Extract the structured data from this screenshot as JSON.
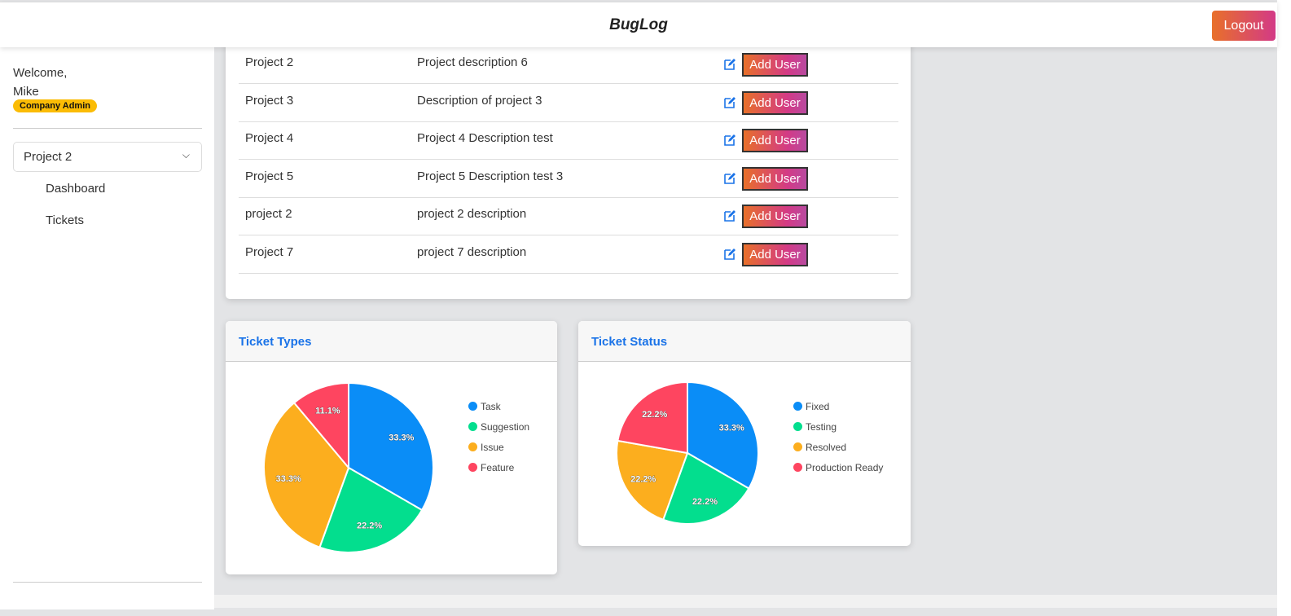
{
  "header": {
    "title": "BugLog",
    "logout": "Logout"
  },
  "sidebar": {
    "welcome": "Welcome,",
    "user": "Mike",
    "role": "Company Admin",
    "project_select": "Project 2",
    "items": [
      {
        "label": "Dashboard"
      },
      {
        "label": "Tickets"
      }
    ]
  },
  "projects": [
    {
      "name": "Project 2",
      "description": "Project description 6",
      "action": "Add User"
    },
    {
      "name": "Project 3",
      "description": "Description of project 3",
      "action": "Add User"
    },
    {
      "name": "Project 4",
      "description": "Project 4 Description test",
      "action": "Add User"
    },
    {
      "name": "Project 5",
      "description": "Project 5 Description test 3",
      "action": "Add User"
    },
    {
      "name": "project 2",
      "description": "project 2 description",
      "action": "Add User"
    },
    {
      "name": "Project 7",
      "description": "project 7 description",
      "action": "Add User"
    }
  ],
  "chart_data": [
    {
      "type": "pie",
      "title": "Ticket Types",
      "categories": [
        "Task",
        "Suggestion",
        "Issue",
        "Feature"
      ],
      "values": [
        3,
        2,
        3,
        1
      ],
      "labels": [
        "33.3%",
        "22.2%",
        "33.3%",
        "11.1%"
      ],
      "colors": [
        "#0a8df7",
        "#03de8e",
        "#fcae1e",
        "#fe4560"
      ],
      "legend": "right"
    },
    {
      "type": "pie",
      "title": "Ticket Status",
      "categories": [
        "Fixed",
        "Testing",
        "Resolved",
        "Production Ready"
      ],
      "values": [
        3,
        2,
        2,
        2
      ],
      "labels": [
        "33.3%",
        "22.2%",
        "22.2%",
        "22.2%"
      ],
      "colors": [
        "#0a8df7",
        "#03de8e",
        "#fcae1e",
        "#fe4560"
      ],
      "legend": "right"
    }
  ]
}
